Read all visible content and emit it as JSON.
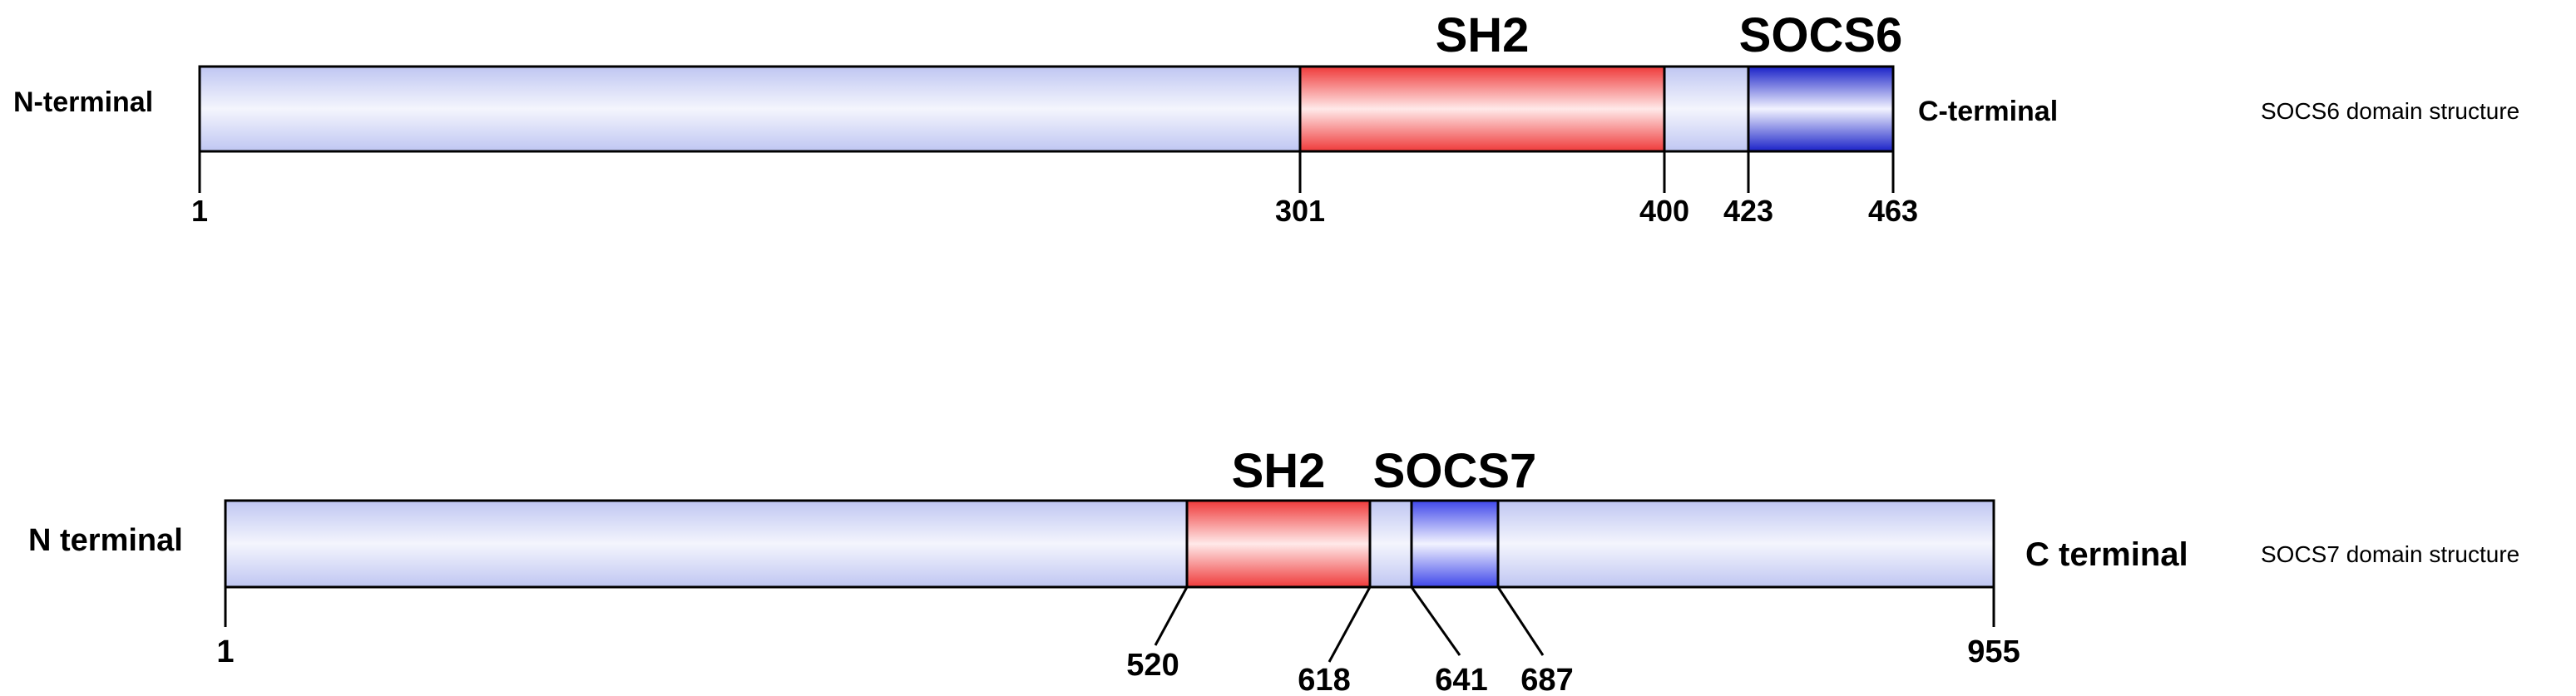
{
  "diagrams": [
    {
      "caption": "SOCS6 domain structure",
      "n_label": "N-terminal",
      "c_label": "C-terminal",
      "length": 463,
      "domains": [
        {
          "name": "SH2",
          "start": 301,
          "end": 400,
          "color": "red"
        },
        {
          "name": "SOCS6",
          "start": 423,
          "end": 463,
          "color": "blue"
        }
      ],
      "ticks": [
        "1",
        "301",
        "400",
        "423",
        "463"
      ]
    },
    {
      "caption": "SOCS7 domain structure",
      "n_label": "N terminal",
      "c_label": "C terminal",
      "length": 955,
      "domains": [
        {
          "name": "SH2",
          "start": 520,
          "end": 618,
          "color": "red"
        },
        {
          "name": "SOCS7",
          "start": 641,
          "end": 687,
          "color": "blue"
        }
      ],
      "ticks": [
        "1",
        "520",
        "618",
        "641",
        "687",
        "955"
      ]
    }
  ],
  "colors": {
    "backbone_edge": "#bfc6f2",
    "backbone_mid": "#f4f5fd",
    "red_edge": "#ef3a3a",
    "red_mid": "#ffe9e9",
    "blue_edge": "#1a22c8",
    "blue_mid": "#f2f3ff",
    "socs7_blue_edge": "#3f47ea"
  }
}
